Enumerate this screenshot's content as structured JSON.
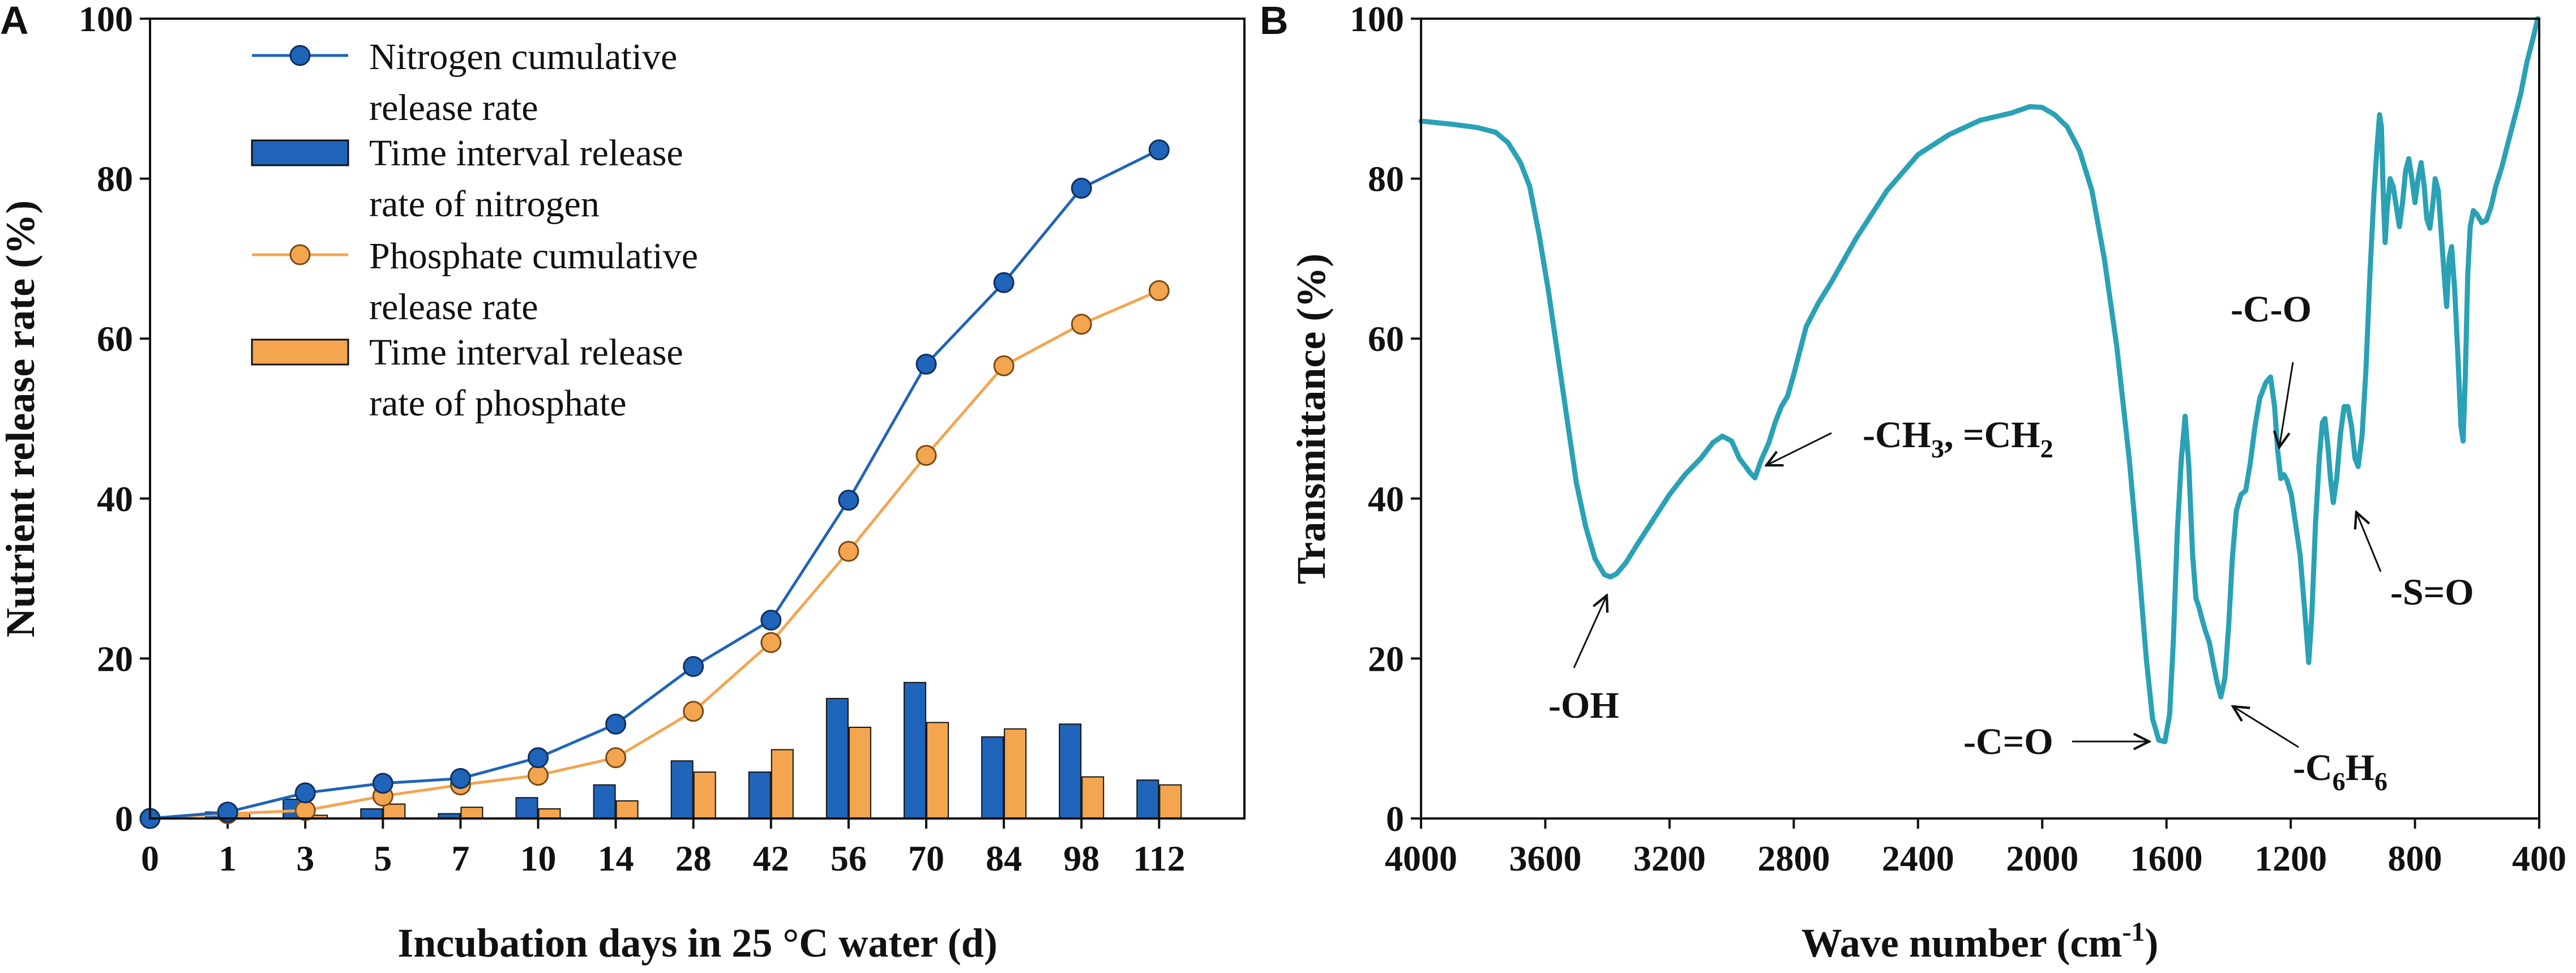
{
  "chart_data": [
    {
      "panel": "A",
      "type": "bar+line",
      "xlabel": "Incubation days in 25 °C water (d)",
      "ylabel": "Nutrient release rate (%)",
      "ylim": [
        0,
        100
      ],
      "yticks": [
        0,
        20,
        40,
        60,
        80,
        100
      ],
      "categories": [
        "0",
        "1",
        "3",
        "5",
        "7",
        "10",
        "14",
        "28",
        "42",
        "56",
        "70",
        "84",
        "98",
        "112"
      ],
      "series": [
        {
          "name": "Nitrogen cumulative release rate",
          "kind": "line",
          "color": "#1f64b8",
          "values": [
            0,
            0.8,
            3.2,
            4.4,
            5.0,
            7.6,
            11.8,
            19.0,
            24.8,
            39.8,
            56.8,
            67.0,
            78.8,
            83.6
          ]
        },
        {
          "name": "Time interval release rate of nitrogen",
          "kind": "bar",
          "color": "#1f64b8",
          "values": [
            0,
            0.8,
            2.4,
            1.2,
            0.6,
            2.6,
            4.2,
            7.2,
            5.8,
            15.0,
            17.0,
            10.2,
            11.8,
            4.8
          ]
        },
        {
          "name": "Phosphate cumulative release rate",
          "kind": "line",
          "color": "#f4a54f",
          "values": [
            0,
            0.6,
            1.0,
            2.8,
            4.2,
            5.4,
            7.6,
            13.4,
            22.0,
            33.4,
            45.4,
            56.6,
            61.8,
            66.0
          ]
        },
        {
          "name": "Time interval release rate of phosphate",
          "kind": "bar",
          "color": "#f4a54f",
          "values": [
            0,
            0.6,
            0.4,
            1.8,
            1.4,
            1.2,
            2.2,
            5.8,
            8.6,
            11.4,
            12.0,
            11.2,
            5.2,
            4.2
          ]
        }
      ],
      "legend": {
        "placement": "top-left",
        "entries": [
          {
            "line1": "Nitrogen cumulative",
            "line2": "release rate"
          },
          {
            "line1": "Time interval release",
            "line2": "rate of nitrogen"
          },
          {
            "line1": "Phosphate cumulative",
            "line2": "release rate"
          },
          {
            "line1": "Time interval release",
            "line2": "rate of phosphate"
          }
        ]
      }
    },
    {
      "panel": "B",
      "type": "line",
      "xlabel_main": "Wave number (cm",
      "xlabel_sup": "-1",
      "xlabel_end": ")",
      "ylabel": "Transmittance (%)",
      "xlim": [
        4000,
        400
      ],
      "ylim": [
        0,
        100
      ],
      "xticks": [
        4000,
        3600,
        3200,
        2800,
        2400,
        2000,
        1600,
        1200,
        800,
        400
      ],
      "yticks": [
        0,
        20,
        40,
        60,
        80,
        100
      ],
      "color": "#2aa1b5",
      "spectrum": [
        [
          4000,
          87.2
        ],
        [
          3900,
          86.8
        ],
        [
          3820,
          86.4
        ],
        [
          3760,
          85.8
        ],
        [
          3720,
          84.5
        ],
        [
          3680,
          82.0
        ],
        [
          3650,
          79.0
        ],
        [
          3620,
          73.0
        ],
        [
          3590,
          66.0
        ],
        [
          3560,
          58.0
        ],
        [
          3530,
          50.0
        ],
        [
          3500,
          42.0
        ],
        [
          3470,
          36.5
        ],
        [
          3440,
          32.5
        ],
        [
          3410,
          30.5
        ],
        [
          3390,
          30.2
        ],
        [
          3370,
          30.6
        ],
        [
          3340,
          32.0
        ],
        [
          3300,
          34.5
        ],
        [
          3250,
          37.5
        ],
        [
          3200,
          40.5
        ],
        [
          3150,
          43.0
        ],
        [
          3100,
          45.0
        ],
        [
          3060,
          47.0
        ],
        [
          3030,
          47.8
        ],
        [
          3000,
          47.2
        ],
        [
          2975,
          45.0
        ],
        [
          2955,
          44.0
        ],
        [
          2940,
          43.2
        ],
        [
          2925,
          42.6
        ],
        [
          2905,
          44.8
        ],
        [
          2880,
          47.0
        ],
        [
          2860,
          49.5
        ],
        [
          2840,
          51.5
        ],
        [
          2820,
          52.8
        ],
        [
          2800,
          55.5
        ],
        [
          2760,
          61.5
        ],
        [
          2720,
          64.5
        ],
        [
          2680,
          67.0
        ],
        [
          2600,
          72.5
        ],
        [
          2500,
          78.5
        ],
        [
          2400,
          83.0
        ],
        [
          2300,
          85.5
        ],
        [
          2200,
          87.3
        ],
        [
          2100,
          88.2
        ],
        [
          2040,
          89.0
        ],
        [
          2000,
          88.9
        ],
        [
          1960,
          88.0
        ],
        [
          1920,
          86.5
        ],
        [
          1880,
          83.5
        ],
        [
          1840,
          78.5
        ],
        [
          1800,
          70.0
        ],
        [
          1760,
          59.0
        ],
        [
          1720,
          45.0
        ],
        [
          1690,
          32.0
        ],
        [
          1665,
          20.0
        ],
        [
          1645,
          12.5
        ],
        [
          1625,
          9.8
        ],
        [
          1605,
          9.6
        ],
        [
          1590,
          13.0
        ],
        [
          1578,
          22.0
        ],
        [
          1565,
          36.0
        ],
        [
          1552,
          45.0
        ],
        [
          1540,
          50.3
        ],
        [
          1528,
          44.0
        ],
        [
          1516,
          33.0
        ],
        [
          1505,
          27.5
        ],
        [
          1496,
          26.5
        ],
        [
          1486,
          25.0
        ],
        [
          1475,
          23.5
        ],
        [
          1462,
          22.0
        ],
        [
          1450,
          19.5
        ],
        [
          1437,
          17.0
        ],
        [
          1425,
          15.2
        ],
        [
          1412,
          17.5
        ],
        [
          1400,
          24.0
        ],
        [
          1388,
          32.5
        ],
        [
          1375,
          38.5
        ],
        [
          1360,
          40.5
        ],
        [
          1345,
          41.0
        ],
        [
          1330,
          44.5
        ],
        [
          1315,
          49.0
        ],
        [
          1300,
          52.5
        ],
        [
          1280,
          54.5
        ],
        [
          1265,
          55.2
        ],
        [
          1252,
          51.5
        ],
        [
          1242,
          46.0
        ],
        [
          1232,
          42.5
        ],
        [
          1222,
          43.0
        ],
        [
          1212,
          42.3
        ],
        [
          1198,
          40.5
        ],
        [
          1185,
          37.0
        ],
        [
          1170,
          33.0
        ],
        [
          1155,
          26.0
        ],
        [
          1142,
          19.5
        ],
        [
          1132,
          25.5
        ],
        [
          1120,
          37.0
        ],
        [
          1108,
          45.0
        ],
        [
          1098,
          49.5
        ],
        [
          1090,
          50.0
        ],
        [
          1080,
          46.5
        ],
        [
          1072,
          42.5
        ],
        [
          1063,
          39.5
        ],
        [
          1052,
          42.5
        ],
        [
          1040,
          48.0
        ],
        [
          1028,
          51.5
        ],
        [
          1016,
          51.5
        ],
        [
          1004,
          49.0
        ],
        [
          993,
          45.0
        ],
        [
          983,
          44.0
        ],
        [
          970,
          48.0
        ],
        [
          958,
          56.0
        ],
        [
          945,
          68.0
        ],
        [
          932,
          78.0
        ],
        [
          922,
          84.0
        ],
        [
          914,
          88.0
        ],
        [
          908,
          86.5
        ],
        [
          902,
          78.0
        ],
        [
          896,
          72.0
        ],
        [
          890,
          76.0
        ],
        [
          880,
          80.0
        ],
        [
          870,
          79.0
        ],
        [
          860,
          76.5
        ],
        [
          850,
          74.0
        ],
        [
          840,
          77.0
        ],
        [
          830,
          81.0
        ],
        [
          820,
          82.5
        ],
        [
          810,
          80.0
        ],
        [
          800,
          77.0
        ],
        [
          790,
          80.0
        ],
        [
          780,
          82.0
        ],
        [
          770,
          79.0
        ],
        [
          762,
          75.0
        ],
        [
          752,
          73.8
        ],
        [
          742,
          77.0
        ],
        [
          735,
          80.0
        ],
        [
          725,
          78.5
        ],
        [
          715,
          73.0
        ],
        [
          706,
          68.0
        ],
        [
          698,
          64.0
        ],
        [
          690,
          70.0
        ],
        [
          682,
          71.5
        ],
        [
          672,
          66.0
        ],
        [
          662,
          58.0
        ],
        [
          652,
          49.0
        ],
        [
          645,
          47.2
        ],
        [
          638,
          55.0
        ],
        [
          630,
          68.0
        ],
        [
          622,
          74.0
        ],
        [
          612,
          76.0
        ],
        [
          600,
          75.5
        ],
        [
          585,
          74.5
        ],
        [
          570,
          74.8
        ],
        [
          555,
          76.5
        ],
        [
          540,
          79.0
        ],
        [
          520,
          81.5
        ],
        [
          500,
          84.5
        ],
        [
          480,
          87.5
        ],
        [
          460,
          90.5
        ],
        [
          440,
          94.5
        ],
        [
          420,
          97.5
        ],
        [
          405,
          100.0
        ]
      ],
      "annotations": [
        {
          "id": "oh",
          "label": "-OH"
        },
        {
          "id": "ch",
          "label": "-CH",
          "sub1": "3",
          "mid": ", =CH",
          "sub2": "2"
        },
        {
          "id": "co",
          "label": "-C-O"
        },
        {
          "id": "so",
          "label": "-S=O"
        },
        {
          "id": "ceq",
          "label": "-C=O"
        },
        {
          "id": "c6h6",
          "label": "-C",
          "sub1": "6",
          "mid": "H",
          "sub2": "6"
        }
      ]
    }
  ]
}
